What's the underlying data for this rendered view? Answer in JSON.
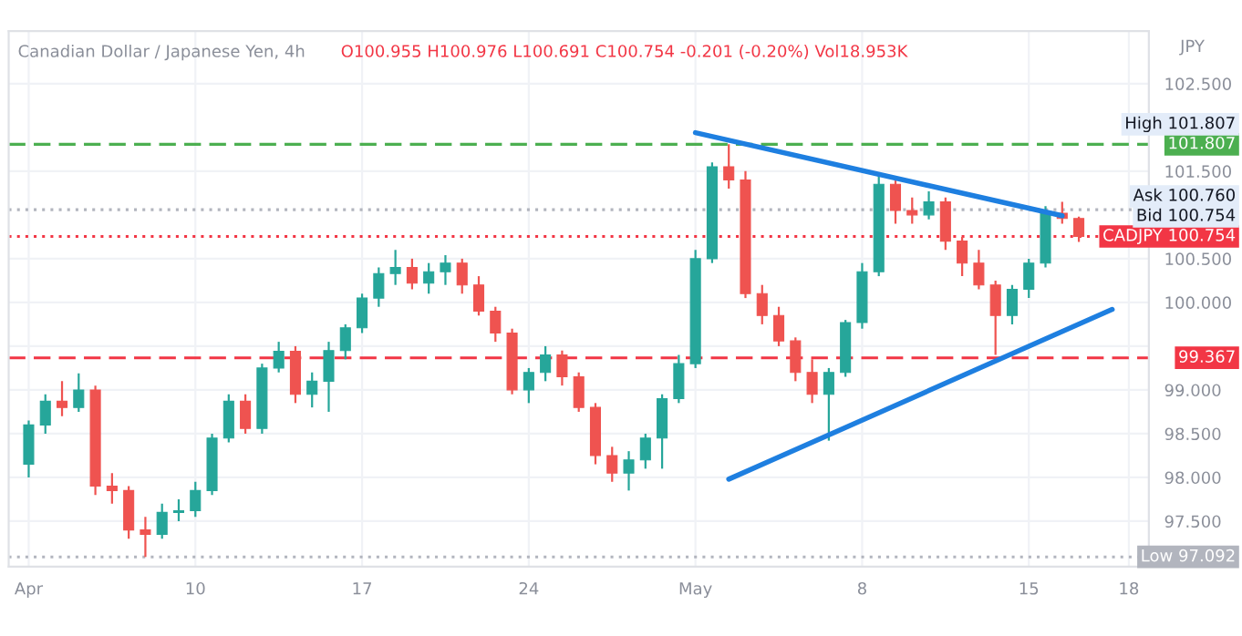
{
  "chart_data": {
    "type": "candlestick",
    "title": "Canadian Dollar / Japanese Yen, 4h",
    "subtitle": "O100.955 H100.976 L100.691 C100.754 -0.201 (-0.20%) Vol18.953K",
    "ylabel": "JPY",
    "categories": [
      "Apr",
      null,
      null,
      null,
      null,
      null,
      null,
      null,
      null,
      null,
      "10",
      null,
      null,
      null,
      null,
      null,
      null,
      null,
      null,
      null,
      "17",
      null,
      null,
      null,
      null,
      null,
      null,
      null,
      null,
      null,
      "24",
      null,
      null,
      null,
      null,
      null,
      null,
      null,
      null,
      null,
      "May",
      null,
      null,
      null,
      null,
      null,
      null,
      null,
      null,
      null,
      "8",
      null,
      null,
      null,
      null,
      null,
      null,
      null,
      null,
      null,
      "15",
      null,
      null,
      null,
      null,
      null,
      "18",
      null
    ],
    "ohlc": [
      [
        98.15,
        98.65,
        98.0,
        98.6
      ],
      [
        98.6,
        98.95,
        98.5,
        98.87
      ],
      [
        98.87,
        99.1,
        98.7,
        98.8
      ],
      [
        98.8,
        99.19,
        98.75,
        99.0
      ],
      [
        99.0,
        99.05,
        97.8,
        97.9
      ],
      [
        97.9,
        98.05,
        97.7,
        97.85
      ],
      [
        97.85,
        97.9,
        97.3,
        97.4
      ],
      [
        97.4,
        97.55,
        97.092,
        97.35
      ],
      [
        97.35,
        97.7,
        97.3,
        97.6
      ],
      [
        97.6,
        97.75,
        97.5,
        97.62
      ],
      [
        97.62,
        97.95,
        97.55,
        97.85
      ],
      [
        97.85,
        98.5,
        97.8,
        98.45
      ],
      [
        98.45,
        98.95,
        98.4,
        98.87
      ],
      [
        98.87,
        98.95,
        98.5,
        98.56
      ],
      [
        98.56,
        99.3,
        98.5,
        99.25
      ],
      [
        99.25,
        99.55,
        99.2,
        99.44
      ],
      [
        99.44,
        99.5,
        98.85,
        98.95
      ],
      [
        98.95,
        99.2,
        98.8,
        99.1
      ],
      [
        99.1,
        99.55,
        98.75,
        99.45
      ],
      [
        99.45,
        99.75,
        99.35,
        99.71
      ],
      [
        99.71,
        100.1,
        99.65,
        100.05
      ],
      [
        100.05,
        100.4,
        99.95,
        100.33
      ],
      [
        100.33,
        100.6,
        100.2,
        100.4
      ],
      [
        100.4,
        100.5,
        100.15,
        100.22
      ],
      [
        100.22,
        100.45,
        100.1,
        100.35
      ],
      [
        100.35,
        100.54,
        100.2,
        100.45
      ],
      [
        100.45,
        100.5,
        100.1,
        100.2
      ],
      [
        100.2,
        100.3,
        99.85,
        99.9
      ],
      [
        99.9,
        99.95,
        99.55,
        99.65
      ],
      [
        99.65,
        99.7,
        98.95,
        99.0
      ],
      [
        99.0,
        99.25,
        98.85,
        99.2
      ],
      [
        99.2,
        99.5,
        99.1,
        99.4
      ],
      [
        99.4,
        99.45,
        99.05,
        99.15
      ],
      [
        99.15,
        99.2,
        98.75,
        98.8
      ],
      [
        98.8,
        98.85,
        98.15,
        98.25
      ],
      [
        98.25,
        98.35,
        97.95,
        98.05
      ],
      [
        98.05,
        98.3,
        97.85,
        98.2
      ],
      [
        98.2,
        98.5,
        98.1,
        98.45
      ],
      [
        98.45,
        98.95,
        98.1,
        98.9
      ],
      [
        98.9,
        99.4,
        98.85,
        99.3
      ],
      [
        99.3,
        100.6,
        99.25,
        100.5
      ],
      [
        100.5,
        101.6,
        100.45,
        101.55
      ],
      [
        101.55,
        101.807,
        101.3,
        101.4
      ],
      [
        101.4,
        101.5,
        100.05,
        100.1
      ],
      [
        100.1,
        100.2,
        99.75,
        99.85
      ],
      [
        99.85,
        99.95,
        99.5,
        99.56
      ],
      [
        99.56,
        99.6,
        99.1,
        99.2
      ],
      [
        99.2,
        99.35,
        98.85,
        98.95
      ],
      [
        98.95,
        99.25,
        98.42,
        99.2
      ],
      [
        99.2,
        99.8,
        99.15,
        99.77
      ],
      [
        99.77,
        100.45,
        99.7,
        100.35
      ],
      [
        100.35,
        101.46,
        100.3,
        101.35
      ],
      [
        101.35,
        101.4,
        100.9,
        101.05
      ],
      [
        101.05,
        101.2,
        100.9,
        101.0
      ],
      [
        101.0,
        101.27,
        100.95,
        101.15
      ],
      [
        101.15,
        101.2,
        100.6,
        100.7
      ],
      [
        100.7,
        100.75,
        100.3,
        100.45
      ],
      [
        100.45,
        100.6,
        100.15,
        100.2
      ],
      [
        100.2,
        100.25,
        99.4,
        99.85
      ],
      [
        99.85,
        100.2,
        99.75,
        100.15
      ],
      [
        100.15,
        100.5,
        100.05,
        100.45
      ],
      [
        100.45,
        101.1,
        100.4,
        101.02
      ],
      [
        101.02,
        101.15,
        100.9,
        100.96
      ],
      [
        100.96,
        100.98,
        100.691,
        100.754
      ],
      null,
      null,
      null,
      null
    ],
    "colors": [
      "#26a69a",
      "#26a69a",
      "#ef5350",
      "#26a69a",
      "#ef5350",
      "#ef5350",
      "#ef5350",
      "#ef5350",
      "#26a69a",
      "#26a69a",
      "#26a69a",
      "#26a69a",
      "#26a69a",
      "#ef5350",
      "#26a69a",
      "#26a69a",
      "#ef5350",
      "#26a69a",
      "#26a69a",
      "#26a69a",
      "#26a69a",
      "#26a69a",
      "#26a69a",
      "#ef5350",
      "#26a69a",
      "#26a69a",
      "#ef5350",
      "#ef5350",
      "#ef5350",
      "#ef5350",
      "#26a69a",
      "#26a69a",
      "#ef5350",
      "#ef5350",
      "#ef5350",
      "#ef5350",
      "#26a69a",
      "#26a69a",
      "#26a69a",
      "#26a69a",
      "#26a69a",
      "#26a69a",
      "#ef5350",
      "#ef5350",
      "#ef5350",
      "#ef5350",
      "#ef5350",
      "#ef5350",
      "#26a69a",
      "#26a69a",
      "#26a69a",
      "#26a69a",
      "#ef5350",
      "#ef5350",
      "#26a69a",
      "#ef5350",
      "#ef5350",
      "#ef5350",
      "#ef5350",
      "#26a69a",
      "#26a69a",
      "#26a69a",
      "#ef5350",
      "#ef5350",
      null,
      null,
      null,
      null
    ],
    "series": [
      {
        "type": "line",
        "color": "#1e7fe0",
        "values": [
          null,
          null,
          null,
          null,
          null,
          null,
          null,
          null,
          null,
          null,
          null,
          null,
          null,
          null,
          null,
          null,
          null,
          null,
          null,
          null,
          null,
          null,
          null,
          null,
          null,
          null,
          null,
          null,
          null,
          null,
          null,
          null,
          null,
          null,
          null,
          null,
          null,
          null,
          null,
          null,
          101.94,
          null,
          null,
          null,
          null,
          null,
          null,
          null,
          null,
          null,
          null,
          null,
          null,
          null,
          null,
          null,
          null,
          null,
          null,
          null,
          null,
          null,
          100.99,
          null,
          null,
          null,
          null,
          null
        ]
      },
      {
        "type": "line",
        "color": "#1e7fe0",
        "values": [
          null,
          null,
          null,
          null,
          null,
          null,
          null,
          null,
          null,
          null,
          null,
          null,
          null,
          null,
          null,
          null,
          null,
          null,
          null,
          null,
          null,
          null,
          null,
          null,
          null,
          null,
          null,
          null,
          null,
          null,
          null,
          null,
          null,
          null,
          null,
          null,
          null,
          null,
          null,
          null,
          null,
          null,
          97.98,
          null,
          null,
          null,
          null,
          null,
          null,
          null,
          null,
          null,
          null,
          null,
          null,
          null,
          null,
          null,
          null,
          null,
          null,
          null,
          null,
          null,
          null,
          99.92,
          null,
          null
        ]
      }
    ],
    "ylim": [
      96.98,
      103.1
    ],
    "yticks": [
      {
        "value": 97.5,
        "label": "97.500"
      },
      {
        "value": 98,
        "label": "98.000"
      },
      {
        "value": 98.5,
        "label": "98.500"
      },
      {
        "value": 99,
        "label": "99.000"
      },
      {
        "value": 99.5,
        "label": null
      },
      {
        "value": 100,
        "label": "100.000"
      },
      {
        "value": 100.5,
        "label": "100.500"
      },
      {
        "value": 101.5,
        "label": "101.500"
      },
      {
        "value": 102.5,
        "label": "102.500"
      }
    ],
    "ref_lines": [
      {
        "axis": "y",
        "value": 101.807,
        "label": "101.807",
        "color": "#4caf50",
        "line_style": "dashed"
      },
      {
        "axis": "y",
        "value": 99.367,
        "label": "99.367",
        "color": "#f23645",
        "line_style": "dashed"
      },
      {
        "axis": "y",
        "value": 101.06,
        "color": "#b2b5be",
        "line_style": "dotted"
      },
      {
        "axis": "y",
        "value": 100.754,
        "label": "CADJPY 100.754",
        "color": "#f23645",
        "line_style": "dotted"
      },
      {
        "axis": "y",
        "value": 97.092,
        "label": "Low 97.092",
        "color": "#b2b5be",
        "line_style": "dotted"
      }
    ],
    "annotations": [
      "High 101.807",
      "Bid 100.754",
      "Ask 100.760"
    ],
    "grid": true
  }
}
